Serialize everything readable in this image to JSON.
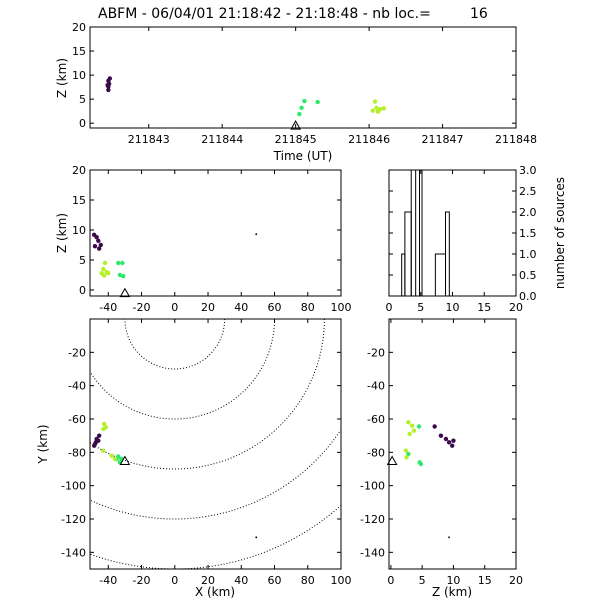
{
  "header": {
    "title": "ABFM - 06/04/01 21:18:42 - 21:18:48 - nb loc.=",
    "count": "16"
  },
  "colors": {
    "dark": "#3b0a4a",
    "green": "#2ee868",
    "lime": "#b4ef2a",
    "frame": "#000000",
    "contour": "#000000"
  },
  "chart_data": [
    {
      "id": "time_height",
      "type": "scatter",
      "xlabel": "Time (UT)",
      "ylabel": "Z (km)",
      "xlim": [
        211842.2,
        211848
      ],
      "ylim": [
        -1,
        20
      ],
      "xticks": [
        211843,
        211844,
        211845,
        211846,
        211847,
        211848
      ],
      "xtick_labels": [
        "211843",
        "211844",
        "211845",
        "211846",
        "211847",
        "211848"
      ],
      "yticks": [
        0,
        5,
        10,
        15,
        20
      ],
      "ytick_labels": [
        "0",
        "5",
        "10",
        "15",
        "20"
      ],
      "series": [
        {
          "color_key": "dark",
          "points": [
            [
              211842.45,
              6.9
            ],
            [
              211842.45,
              7.6
            ],
            [
              211842.46,
              8.2
            ],
            [
              211842.45,
              8.8
            ],
            [
              211842.47,
              9.3
            ],
            [
              211842.44,
              7.9
            ]
          ]
        },
        {
          "color_key": "green",
          "points": [
            [
              211845.05,
              1.9
            ],
            [
              211845.12,
              4.6
            ],
            [
              211845.3,
              4.4
            ],
            [
              211845.08,
              3.2
            ]
          ]
        },
        {
          "color_key": "lime",
          "points": [
            [
              211846.05,
              2.6
            ],
            [
              211846.1,
              3.2
            ],
            [
              211846.15,
              2.9
            ],
            [
              211846.08,
              4.5
            ],
            [
              211846.2,
              3.1
            ],
            [
              211846.12,
              2.4
            ]
          ]
        }
      ],
      "markers": [
        {
          "shape": "triangle",
          "x": 211845,
          "y": -0.6
        }
      ]
    },
    {
      "id": "x_height",
      "type": "scatter",
      "xlabel": "",
      "ylabel": "Z (km)",
      "xlim": [
        -51,
        100
      ],
      "ylim": [
        -1,
        20
      ],
      "xticks": [
        -40,
        -20,
        0,
        20,
        40,
        60,
        80,
        100
      ],
      "xtick_labels": [
        "-40",
        "-20",
        "0",
        "20",
        "40",
        "60",
        "80",
        "100"
      ],
      "yticks": [
        0,
        5,
        10,
        15,
        20
      ],
      "ytick_labels": [
        "0",
        "5",
        "10",
        "15",
        "20"
      ],
      "series": [
        {
          "color_key": "dark",
          "points": [
            [
              -48.5,
              9.2
            ],
            [
              -47,
              8.8
            ],
            [
              -46,
              8.2
            ],
            [
              -44.5,
              7.5
            ],
            [
              -48,
              7.3
            ],
            [
              -45.5,
              6.9
            ]
          ]
        },
        {
          "color_key": "green",
          "points": [
            [
              -34,
              4.5
            ],
            [
              -31.5,
              4.5
            ],
            [
              -33,
              2.5
            ],
            [
              -31,
              2.3
            ]
          ]
        },
        {
          "color_key": "lime",
          "points": [
            [
              -43,
              3.5
            ],
            [
              -42,
              4.5
            ],
            [
              -41,
              3.0
            ],
            [
              -44,
              2.8
            ],
            [
              -40,
              2.8
            ],
            [
              -42.5,
              2.4
            ]
          ]
        }
      ],
      "markers": [
        {
          "shape": "triangle",
          "x": -30,
          "y": -0.6
        },
        {
          "shape": "dot",
          "x": 49,
          "y": 9.3
        }
      ]
    },
    {
      "id": "height_histogram",
      "type": "bar",
      "xlabel": "",
      "ylabel": "number of sources",
      "xlim": [
        0,
        20
      ],
      "ylim": [
        0,
        3
      ],
      "xticks": [
        0,
        5,
        10,
        15,
        20
      ],
      "xtick_labels": [
        "0",
        "5",
        "10",
        "15",
        "20"
      ],
      "yticks": [
        0,
        0.5,
        1,
        1.5,
        2,
        2.5,
        3
      ],
      "ytick_labels": [
        "0.0",
        "0.5",
        "1.0",
        "1.5",
        "2.0",
        "2.5",
        "3.0"
      ],
      "bins": [
        [
          2,
          2.5,
          1
        ],
        [
          2.5,
          3.5,
          2
        ],
        [
          3.5,
          4.2,
          3
        ],
        [
          4.2,
          4.8,
          0
        ],
        [
          4.8,
          5.2,
          3
        ],
        [
          5.2,
          7.3,
          0
        ],
        [
          7.3,
          8.9,
          1
        ],
        [
          8.9,
          9.5,
          2
        ],
        [
          9.5,
          20,
          0
        ]
      ]
    },
    {
      "id": "plan_view",
      "type": "scatter",
      "xlabel": "X (km)",
      "ylabel": "Y (km)",
      "xlim": [
        -51,
        100
      ],
      "ylim": [
        -150,
        0
      ],
      "xticks": [
        -40,
        -20,
        0,
        20,
        40,
        60,
        80,
        100
      ],
      "xtick_labels": [
        "-40",
        "-20",
        "0",
        "20",
        "40",
        "60",
        "80",
        "100"
      ],
      "yticks": [
        -140,
        -120,
        -100,
        -80,
        -60,
        -40,
        -20
      ],
      "ytick_labels": [
        "-140",
        "-120",
        "-100",
        "-80",
        "-60",
        "-40",
        "-20"
      ],
      "range_rings": {
        "center": [
          0,
          0
        ],
        "radii": [
          30,
          60,
          90,
          120,
          150
        ]
      },
      "series": [
        {
          "color_key": "dark",
          "points": [
            [
              -48.5,
              -76
            ],
            [
              -47.5,
              -74
            ],
            [
              -47,
              -72
            ],
            [
              -46,
              -73
            ],
            [
              -45.5,
              -70
            ],
            [
              -48,
              -75
            ]
          ]
        },
        {
          "color_key": "green",
          "points": [
            [
              -34,
              -82.5
            ],
            [
              -32,
              -84
            ],
            [
              -35,
              -84
            ],
            [
              -33,
              -86
            ]
          ]
        },
        {
          "color_key": "lime",
          "points": [
            [
              -42.5,
              -63
            ],
            [
              -41.5,
              -65
            ],
            [
              -43,
              -66
            ],
            [
              -43,
              -79
            ],
            [
              -38,
              -82
            ],
            [
              -36,
              -84
            ]
          ]
        }
      ],
      "markers": [
        {
          "shape": "triangle",
          "x": -30,
          "y": -85.5
        },
        {
          "shape": "dot",
          "x": 49,
          "y": -131
        }
      ]
    },
    {
      "id": "height_y",
      "type": "scatter",
      "xlabel": "Z (km)",
      "ylabel": "",
      "xlim": [
        -0.3,
        20
      ],
      "ylim": [
        -150,
        0
      ],
      "xticks": [
        0,
        5,
        10,
        15,
        20
      ],
      "xtick_labels": [
        "0",
        "5",
        "10",
        "15",
        "20"
      ],
      "yticks": [
        -140,
        -120,
        -100,
        -80,
        -60,
        -40,
        -20
      ],
      "ytick_labels": [
        "-140",
        "-120",
        "-100",
        "-80",
        "-60",
        "-40",
        "-20"
      ],
      "series": [
        {
          "color_key": "dark",
          "points": [
            [
              7,
              -64.5
            ],
            [
              8,
              -70
            ],
            [
              8.8,
              -72
            ],
            [
              9.3,
              -74
            ],
            [
              9.8,
              -76
            ],
            [
              10,
              -73
            ]
          ]
        },
        {
          "color_key": "green",
          "points": [
            [
              4.5,
              -64.5
            ],
            [
              2.8,
              -81
            ],
            [
              4.6,
              -86
            ],
            [
              4.8,
              -87
            ]
          ]
        },
        {
          "color_key": "lime",
          "points": [
            [
              2.8,
              -62
            ],
            [
              3.4,
              -64
            ],
            [
              3.7,
              -67
            ],
            [
              3.0,
              -69
            ],
            [
              2.5,
              -83
            ],
            [
              2.4,
              -79
            ]
          ]
        }
      ],
      "markers": [
        {
          "shape": "triangle",
          "x": 0.2,
          "y": -85.5
        },
        {
          "shape": "dot",
          "x": 9.3,
          "y": -131
        }
      ]
    }
  ]
}
